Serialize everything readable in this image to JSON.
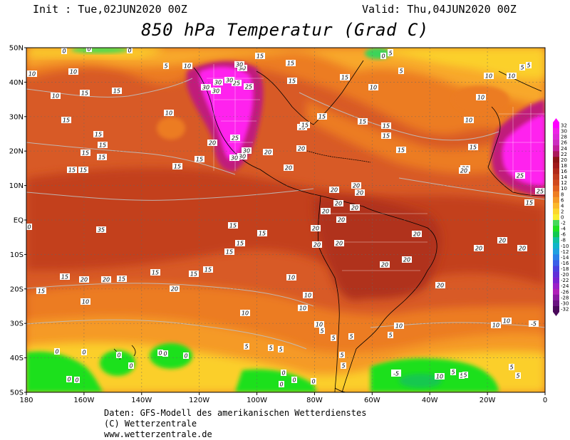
{
  "header": {
    "init": "Init : Tue,02JUN2020 00Z",
    "valid": "Valid: Thu,04JUN2020 00Z",
    "title": "850 hPa Temperatur (Grad C)"
  },
  "axes": {
    "lat_labels": [
      "50N",
      "40N",
      "30N",
      "20N",
      "10N",
      "EQ",
      "10S",
      "20S",
      "30S",
      "40S",
      "50S"
    ],
    "lon_labels": [
      "180",
      "160W",
      "140W",
      "120W",
      "100W",
      "80W",
      "60W",
      "40W",
      "20W",
      "0"
    ]
  },
  "colorbar": {
    "labels": [
      "32",
      "30",
      "28",
      "26",
      "24",
      "22",
      "20",
      "18",
      "16",
      "14",
      "12",
      "10",
      "8",
      "6",
      "4",
      "2",
      "0",
      "-2",
      "-4",
      "-6",
      "-8",
      "-10",
      "-12",
      "-14",
      "-16",
      "-18",
      "-20",
      "-22",
      "-24",
      "-26",
      "-28",
      "-30",
      "-32"
    ],
    "colors": [
      "#ff00ff",
      "#ee22e8",
      "#dd28d8",
      "#cc2ec0",
      "#c01f9a",
      "#aa1a5a",
      "#8c1414",
      "#a01a1a",
      "#b02a1a",
      "#c03c1e",
      "#d04a1e",
      "#e06020",
      "#ee7e22",
      "#f59a26",
      "#fbb82a",
      "#fcd62c",
      "#f8ee30",
      "#46d85a",
      "#1fe01f",
      "#12c850",
      "#10c0a0",
      "#10b4c8",
      "#1ea0e0",
      "#2a80e8",
      "#3a5ee8",
      "#4a40e0",
      "#6030d8",
      "#7a22d0",
      "#9a20c8",
      "#b020b8",
      "#8a1aa0",
      "#6a1480",
      "#4a0a5a"
    ]
  },
  "contour_labels": [
    {
      "t": "0"
    },
    {
      "t": "0"
    },
    {
      "t": "0"
    },
    {
      "t": "0"
    },
    {
      "t": "0"
    },
    {
      "t": "5"
    },
    {
      "t": "5"
    },
    {
      "t": "5"
    },
    {
      "t": "5"
    },
    {
      "t": "5"
    },
    {
      "t": "10"
    },
    {
      "t": "10"
    },
    {
      "t": "10"
    },
    {
      "t": "10"
    },
    {
      "t": "10"
    },
    {
      "t": "10"
    },
    {
      "t": "10"
    },
    {
      "t": "10"
    },
    {
      "t": "10"
    },
    {
      "t": "10"
    },
    {
      "t": "10"
    },
    {
      "t": "10"
    },
    {
      "t": "15"
    },
    {
      "t": "15"
    },
    {
      "t": "15"
    },
    {
      "t": "15"
    },
    {
      "t": "15"
    },
    {
      "t": "15"
    },
    {
      "t": "15"
    },
    {
      "t": "15"
    },
    {
      "t": "15"
    },
    {
      "t": "15"
    },
    {
      "t": "15"
    },
    {
      "t": "15"
    },
    {
      "t": "15"
    },
    {
      "t": "15"
    },
    {
      "t": "15"
    },
    {
      "t": "15"
    },
    {
      "t": "15"
    },
    {
      "t": "15"
    },
    {
      "t": "15"
    },
    {
      "t": "15"
    },
    {
      "t": "15"
    },
    {
      "t": "15"
    },
    {
      "t": "15"
    },
    {
      "t": "15"
    },
    {
      "t": "15"
    },
    {
      "t": "15"
    },
    {
      "t": "15"
    },
    {
      "t": "15"
    },
    {
      "t": "15"
    },
    {
      "t": "15"
    },
    {
      "t": "15"
    },
    {
      "t": "15"
    },
    {
      "t": "15"
    },
    {
      "t": "15"
    },
    {
      "t": "20"
    },
    {
      "t": "20"
    },
    {
      "t": "20"
    },
    {
      "t": "20"
    },
    {
      "t": "20"
    },
    {
      "t": "20"
    },
    {
      "t": "20"
    },
    {
      "t": "20"
    },
    {
      "t": "20"
    },
    {
      "t": "20"
    },
    {
      "t": "20"
    },
    {
      "t": "20"
    },
    {
      "t": "20"
    },
    {
      "t": "20"
    },
    {
      "t": "20"
    },
    {
      "t": "20"
    },
    {
      "t": "20"
    },
    {
      "t": "20"
    },
    {
      "t": "20"
    },
    {
      "t": "20"
    },
    {
      "t": "20"
    },
    {
      "t": "20"
    },
    {
      "t": "20"
    },
    {
      "t": "20"
    },
    {
      "t": "20"
    },
    {
      "t": "20"
    },
    {
      "t": "25"
    },
    {
      "t": "25"
    },
    {
      "t": "25"
    },
    {
      "t": "25"
    },
    {
      "t": "25"
    },
    {
      "t": "30"
    },
    {
      "t": "30"
    },
    {
      "t": "30"
    },
    {
      "t": "30"
    },
    {
      "t": "30"
    },
    {
      "t": "30"
    },
    {
      "t": "30"
    },
    {
      "t": "30"
    },
    {
      "t": "30"
    },
    {
      "t": "35"
    },
    {
      "t": "0"
    },
    {
      "t": "0"
    },
    {
      "t": "0"
    },
    {
      "t": "0"
    },
    {
      "t": "0"
    },
    {
      "t": "0"
    },
    {
      "t": "0"
    },
    {
      "t": "0"
    },
    {
      "t": "0"
    },
    {
      "t": "0"
    },
    {
      "t": "0"
    },
    {
      "t": "0"
    },
    {
      "t": "0"
    },
    {
      "t": "0"
    },
    {
      "t": "5"
    },
    {
      "t": "5"
    },
    {
      "t": "5"
    },
    {
      "t": "5"
    },
    {
      "t": "5"
    },
    {
      "t": "5"
    },
    {
      "t": "5"
    },
    {
      "t": "5"
    },
    {
      "t": "5"
    },
    {
      "t": "5"
    },
    {
      "t": "5"
    },
    {
      "t": "5"
    },
    {
      "t": "5"
    },
    {
      "t": "5"
    },
    {
      "t": "10"
    },
    {
      "t": "10"
    },
    {
      "t": "10"
    },
    {
      "t": "10"
    },
    {
      "t": "10"
    },
    {
      "t": "10"
    },
    {
      "t": "10"
    },
    {
      "t": "10"
    },
    {
      "t": "10"
    },
    {
      "t": "-5"
    },
    {
      "t": "-5"
    }
  ],
  "footer": {
    "line1": "Daten: GFS-Modell des amerikanischen Wetterdienstes",
    "line2": "(C) Wetterzentrale",
    "line3": "www.wetterzentrale.de"
  },
  "colors": {
    "warm_bg": "#d85a26",
    "mid_orange": "#ec7c22",
    "orange": "#f59a26",
    "yellow": "#fbcf2c",
    "green": "#1fe01f",
    "dark_red": "#b83a1e",
    "magenta": "#ff22ee"
  }
}
